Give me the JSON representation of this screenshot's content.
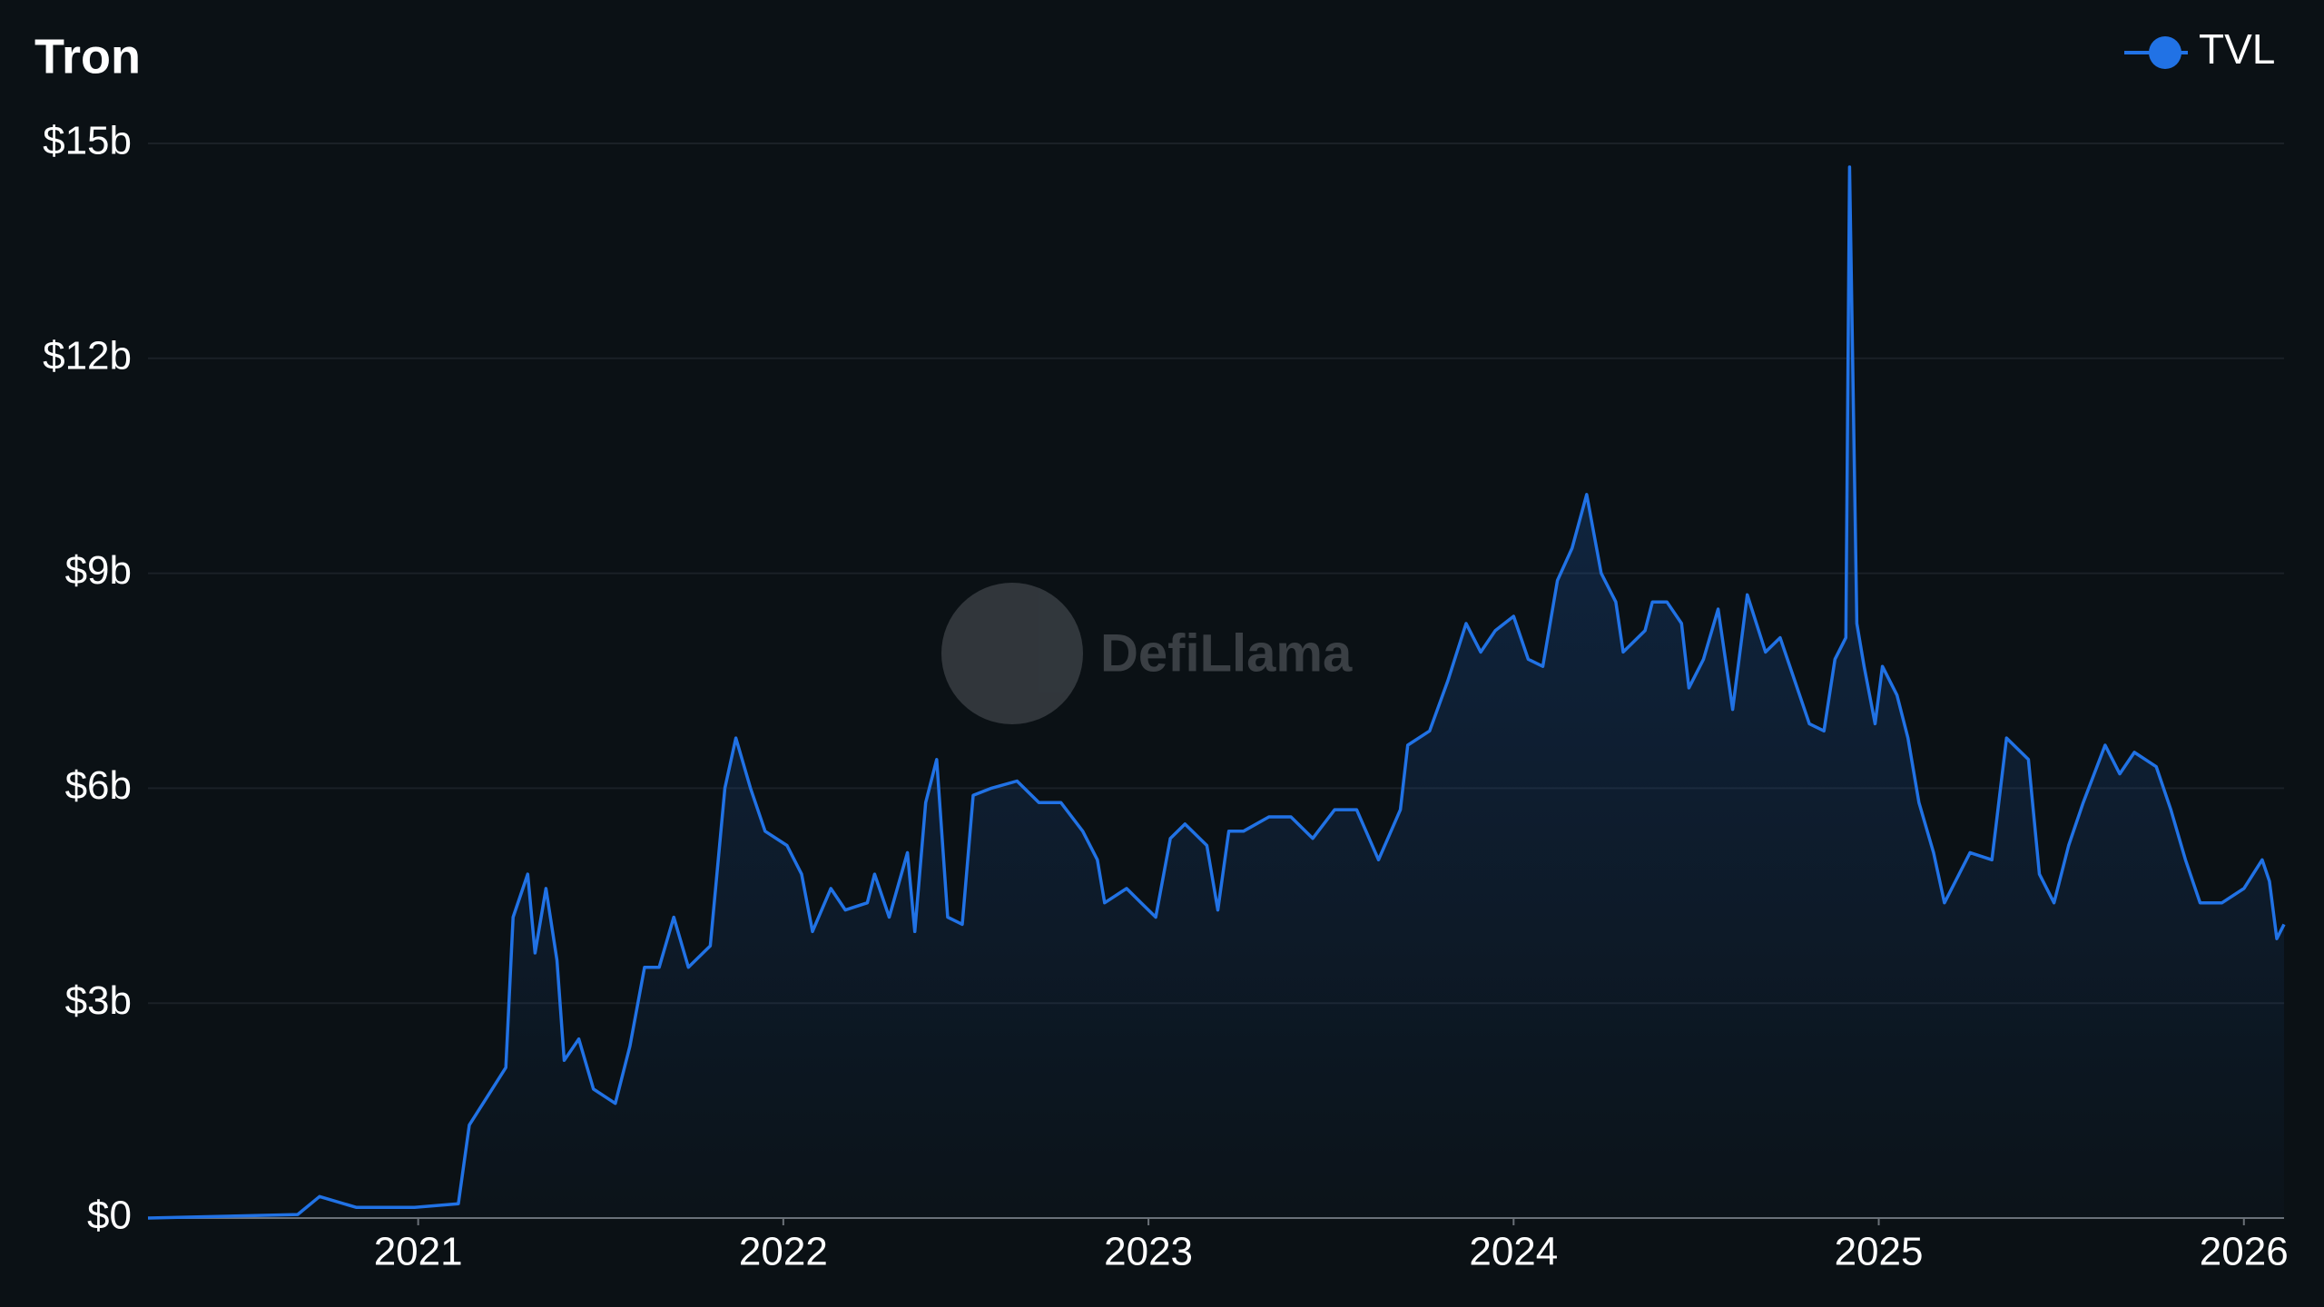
{
  "chart_data": {
    "type": "line",
    "title": "Tron",
    "watermark": "DefiLlama",
    "x": [
      2020.26,
      2020.67,
      2020.73,
      2020.83,
      2020.99,
      2021.11,
      2021.14,
      2021.19,
      2021.24,
      2021.26,
      2021.3,
      2021.32,
      2021.35,
      2021.38,
      2021.4,
      2021.44,
      2021.48,
      2021.54,
      2021.58,
      2021.62,
      2021.66,
      2021.7,
      2021.74,
      2021.8,
      2021.84,
      2021.87,
      2021.91,
      2021.95,
      2022.01,
      2022.05,
      2022.08,
      2022.13,
      2022.17,
      2022.23,
      2022.25,
      2022.29,
      2022.34,
      2022.36,
      2022.39,
      2022.42,
      2022.45,
      2022.49,
      2022.52,
      2022.57,
      2022.64,
      2022.7,
      2022.76,
      2022.82,
      2022.86,
      2022.88,
      2022.94,
      2022.98,
      2023.02,
      2023.06,
      2023.1,
      2023.16,
      2023.19,
      2023.22,
      2023.26,
      2023.33,
      2023.39,
      2023.45,
      2023.51,
      2023.57,
      2023.63,
      2023.69,
      2023.71,
      2023.77,
      2023.82,
      2023.87,
      2023.91,
      2023.95,
      2024.0,
      2024.04,
      2024.08,
      2024.12,
      2024.16,
      2024.2,
      2024.24,
      2024.28,
      2024.3,
      2024.36,
      2024.38,
      2024.42,
      2024.46,
      2024.48,
      2024.52,
      2024.56,
      2024.6,
      2024.64,
      2024.69,
      2024.73,
      2024.77,
      2024.81,
      2024.85,
      2024.88,
      2024.91,
      2024.92,
      2024.94,
      2024.96,
      2024.99,
      2025.01,
      2025.05,
      2025.08,
      2025.11,
      2025.15,
      2025.18,
      2025.21,
      2025.25,
      2025.31,
      2025.35,
      2025.41,
      2025.44,
      2025.48,
      2025.52,
      2025.56,
      2025.62,
      2025.66,
      2025.7,
      2025.76,
      2025.8,
      2025.84,
      2025.88,
      2025.94,
      2026.0,
      2026.05,
      2026.07,
      2026.09,
      2026.11
    ],
    "series": [
      {
        "name": "TVL",
        "color": "#2172e5",
        "values": [
          0,
          0.05,
          0.3,
          0.15,
          0.15,
          0.2,
          1.3,
          1.7,
          2.1,
          4.2,
          4.8,
          3.7,
          4.6,
          3.6,
          2.2,
          2.5,
          1.8,
          1.6,
          2.4,
          3.5,
          3.5,
          4.2,
          3.5,
          3.8,
          6.0,
          6.7,
          6.0,
          5.4,
          5.2,
          4.8,
          4.0,
          4.6,
          4.3,
          4.4,
          4.8,
          4.2,
          5.1,
          4.0,
          5.8,
          6.4,
          4.2,
          4.1,
          5.9,
          6.0,
          6.1,
          5.8,
          5.8,
          5.4,
          5.0,
          4.4,
          4.6,
          4.4,
          4.2,
          5.3,
          5.5,
          5.2,
          4.3,
          5.4,
          5.4,
          5.6,
          5.6,
          5.3,
          5.7,
          5.7,
          5.0,
          5.7,
          6.6,
          6.8,
          7.5,
          8.3,
          7.9,
          8.2,
          8.4,
          7.8,
          7.7,
          8.9,
          9.35,
          10.1,
          9.0,
          8.6,
          7.9,
          8.2,
          8.6,
          8.6,
          8.3,
          7.4,
          7.8,
          8.5,
          7.1,
          8.7,
          7.9,
          8.1,
          7.5,
          6.9,
          6.8,
          7.8,
          8.1,
          14.67,
          8.3,
          7.7,
          6.9,
          7.7,
          7.3,
          6.7,
          5.8,
          5.1,
          4.4,
          4.7,
          5.1,
          5.0,
          6.7,
          6.4,
          4.8,
          4.4,
          5.2,
          5.8,
          6.6,
          6.2,
          6.5,
          6.3,
          5.7,
          5.0,
          4.4,
          4.4,
          4.6,
          5.0,
          4.7,
          3.9,
          4.1
        ]
      }
    ],
    "xlim": [
      2020.26,
      2026.11
    ],
    "xticks": [
      2021,
      2022,
      2023,
      2024,
      2025,
      2026
    ],
    "ylim": [
      0,
      15
    ],
    "yticks": [
      {
        "value": 0,
        "label": "$0"
      },
      {
        "value": 3,
        "label": "$3b"
      },
      {
        "value": 6,
        "label": "$6b"
      },
      {
        "value": 9,
        "label": "$9b"
      },
      {
        "value": 12,
        "label": "$12b"
      },
      {
        "value": 15,
        "label": "$15b"
      }
    ],
    "grid": true,
    "legend": "top-right"
  }
}
